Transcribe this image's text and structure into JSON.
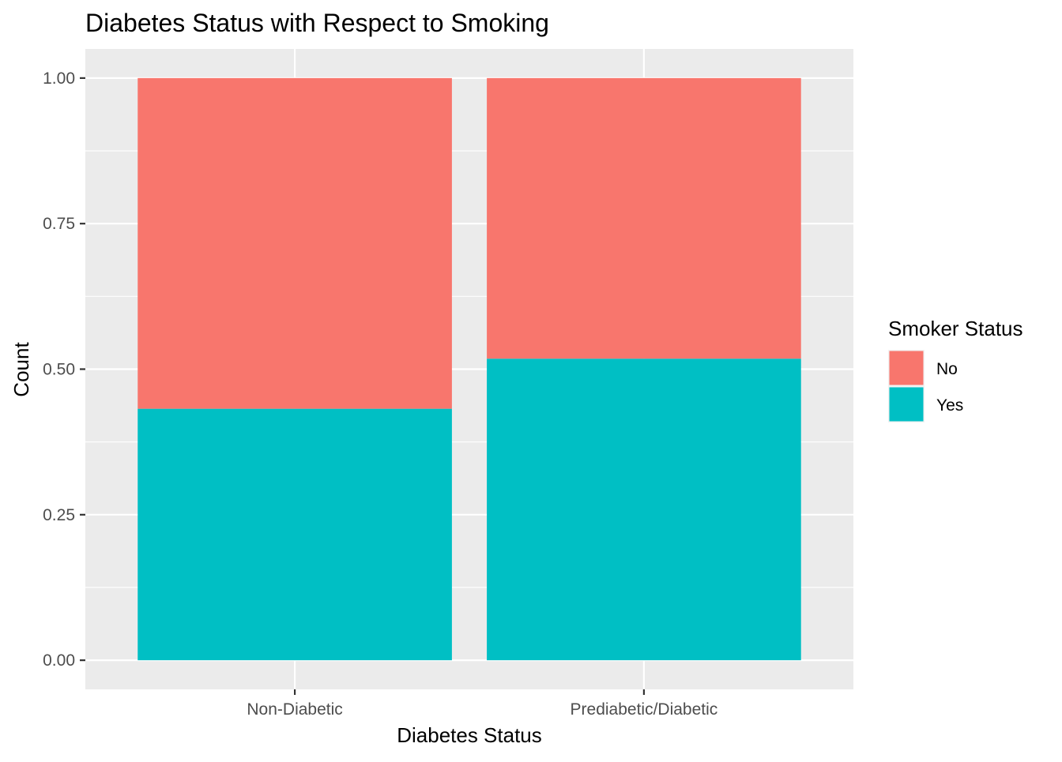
{
  "chart_data": {
    "type": "bar",
    "stacked": true,
    "title": "Diabetes Status with Respect to Smoking",
    "xlabel": "Diabetes Status",
    "ylabel": "Count",
    "categories": [
      "Non-Diabetic",
      "Prediabetic/Diabetic"
    ],
    "series": [
      {
        "name": "Yes",
        "color": "#00BFC4",
        "values": [
          0.432,
          0.518
        ]
      },
      {
        "name": "No",
        "color": "#F8766D",
        "values": [
          0.568,
          0.482
        ]
      }
    ],
    "ylim": [
      -0.05,
      1.05
    ],
    "yticks": [
      0.0,
      0.25,
      0.5,
      0.75,
      1.0
    ],
    "ytick_labels": [
      "0.00",
      "0.25",
      "0.50",
      "0.75",
      "1.00"
    ],
    "grid": true,
    "legend": {
      "title": "Smoker Status",
      "position": "right",
      "entries": [
        {
          "label": "No",
          "color": "#F8766D"
        },
        {
          "label": "Yes",
          "color": "#00BFC4"
        }
      ]
    },
    "panel_background": "#EBEBEB",
    "grid_color": "#FFFFFF"
  }
}
